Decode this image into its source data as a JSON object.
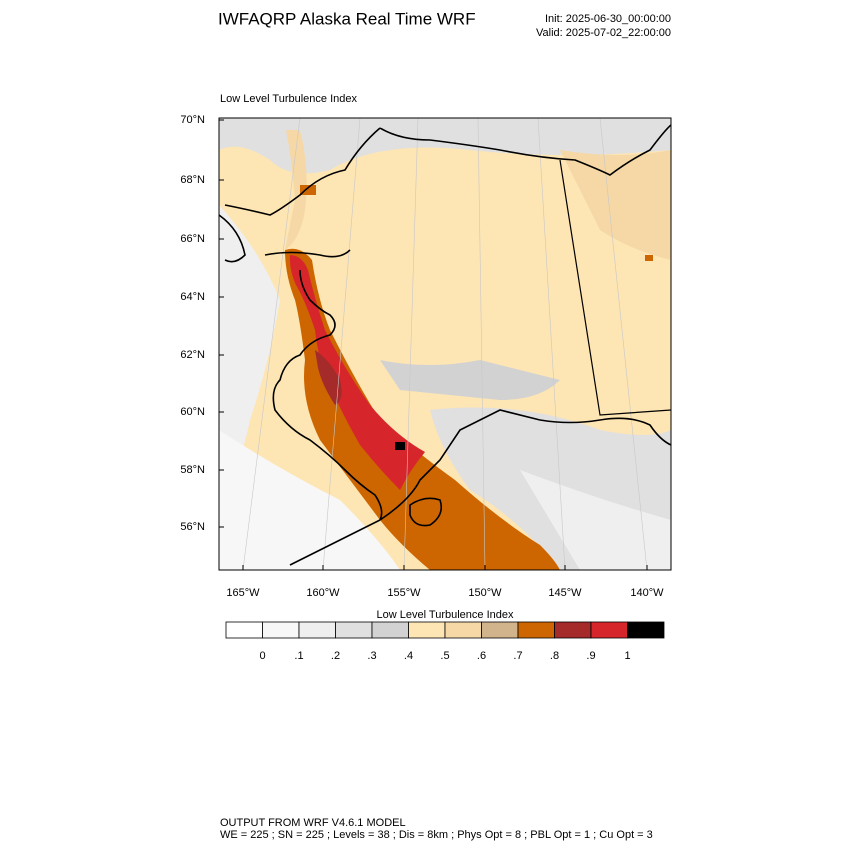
{
  "header": {
    "title": "IWFAQRP Alaska Real Time WRF",
    "init": "Init: 2025-06-30_00:00:00",
    "valid": "Valid: 2025-07-02_22:00:00"
  },
  "map": {
    "title": "Low Level Turbulence Index",
    "lat_labels": [
      "70°N",
      "68°N",
      "66°N",
      "64°N",
      "62°N",
      "60°N",
      "58°N",
      "56°N"
    ],
    "lon_labels": [
      "165°W",
      "160°W",
      "155°W",
      "150°W",
      "145°W",
      "140°W"
    ]
  },
  "colorbar": {
    "title": "Low Level Turbulence Index",
    "colors": [
      "#ffffff",
      "#f7f7f7",
      "#efefef",
      "#e0e0e0",
      "#d2d2d2",
      "#fde5b4",
      "#f5d8a6",
      "#d2b48c",
      "#cd6600",
      "#a52a2a",
      "#d7262b",
      "#000000"
    ],
    "labels": [
      "0",
      ".1",
      ".2",
      ".3",
      ".4",
      ".5",
      ".6",
      ".7",
      ".8",
      ".9",
      "1"
    ]
  },
  "footer": {
    "line1": "OUTPUT FROM WRF V4.6.1 MODEL",
    "line2": "WE = 225 ; SN = 225 ; Levels = 38 ; Dis = 8km ; Phys Opt = 8 ; PBL Opt = 1 ; Cu Opt = 3"
  }
}
